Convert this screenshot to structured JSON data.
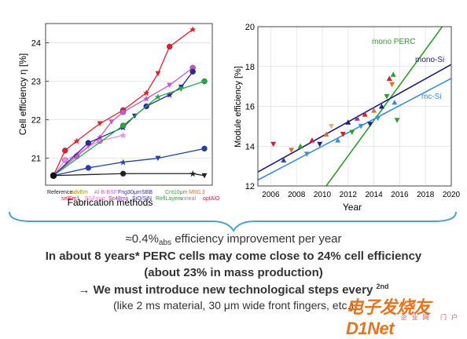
{
  "left_chart": {
    "ylabel": "Cell efficiency η [%]",
    "xlabel": "Fabrication methods",
    "yticks": [
      "21",
      "22",
      "23",
      "24"
    ],
    "top_labels": [
      {
        "text": "Reference",
        "color": "#222222"
      },
      {
        "text": "advEm",
        "color": "#b8860b"
      },
      {
        "text": "Al-B-BSF",
        "color": "#cc66cc"
      },
      {
        "text": "Fng30μm",
        "color": "#3333aa"
      },
      {
        "text": "SBB",
        "color": "#3333aa"
      },
      {
        "text": "Cnt10μm",
        "color": "#33aa33"
      },
      {
        "text": "MR0.3",
        "color": "#e07030"
      }
    ],
    "bottom_labels": [
      {
        "text": "selEm1",
        "color": "#cc2233"
      },
      {
        "text": "BSFeng",
        "color": "#ee88ee"
      },
      {
        "text": "Sc48ms",
        "color": "#992299"
      },
      {
        "text": "SiO/SiN",
        "color": "#3333aa"
      },
      {
        "text": "ReflLayers",
        "color": "#33aa33"
      },
      {
        "text": "anneal",
        "color": "#888888"
      },
      {
        "text": "optAlO",
        "color": "#cc2233"
      }
    ]
  },
  "right_chart": {
    "ylabel": "Module efficiency [%]",
    "xlabel": "Year",
    "series_labels": {
      "mono_perc": "mono PERC",
      "mono_si": "mono-Si",
      "mc_si": "mc-Si"
    }
  },
  "chart_data": [
    {
      "type": "scatter",
      "title": "",
      "xlabel": "Fabrication methods",
      "ylabel": "Cell efficiency η [%]",
      "ylim": [
        20.3,
        24.5
      ],
      "x_categories": [
        "Reference",
        "selEm1",
        "advEm",
        "BSFeng",
        "Al-B-BSF",
        "Sc48ms",
        "Fng30μm",
        "SiO/SiN",
        "SBB",
        "ReflLayers",
        "Cnt10μm",
        "anneal",
        "MR0.3",
        "optAlO"
      ],
      "series": [
        {
          "color": "#e0202e",
          "x": [
            0,
            1,
            2,
            4,
            6,
            8,
            9,
            10,
            12
          ],
          "y": [
            20.55,
            21.2,
            21.45,
            21.9,
            22.25,
            22.7,
            23.2,
            23.9,
            24.35
          ]
        },
        {
          "color": "#ee88ee",
          "x": [
            0,
            1,
            2,
            3,
            4,
            6
          ],
          "y": [
            20.55,
            20.95,
            21.1,
            21.3,
            21.45,
            21.6
          ]
        },
        {
          "color": "#cc55cc",
          "x": [
            0,
            2,
            4,
            5,
            6,
            8,
            10,
            12
          ],
          "y": [
            20.55,
            21.05,
            21.55,
            21.95,
            22.2,
            22.55,
            22.9,
            23.35
          ]
        },
        {
          "color": "#2a2a9a",
          "x": [
            0,
            3,
            6,
            7,
            8,
            10,
            11,
            12
          ],
          "y": [
            20.55,
            21.4,
            21.8,
            22.1,
            22.35,
            22.65,
            22.85,
            23.25
          ]
        },
        {
          "color": "#22aa44",
          "x": [
            0,
            6,
            9,
            11,
            13
          ],
          "y": [
            20.55,
            21.85,
            22.6,
            22.8,
            23.0
          ]
        },
        {
          "color": "#2244aa",
          "x": [
            0,
            3,
            6,
            9,
            13
          ],
          "y": [
            20.55,
            20.75,
            20.9,
            21.0,
            21.25
          ]
        },
        {
          "color": "#222222",
          "x": [
            0,
            6,
            12,
            13
          ],
          "y": [
            20.55,
            20.6,
            20.6,
            20.55
          ]
        }
      ]
    },
    {
      "type": "scatter",
      "title": "",
      "xlabel": "Year",
      "ylabel": "Module efficiency [%]",
      "xlim": [
        2005,
        2020
      ],
      "ylim": [
        12,
        20
      ],
      "xticks": [
        2006,
        2008,
        2010,
        2012,
        2014,
        2016,
        2018,
        2020
      ],
      "yticks": [
        12,
        14,
        16,
        18,
        20
      ],
      "trend_lines": [
        {
          "name": "mono PERC",
          "color": "#2e9e2e",
          "points": [
            [
              2010.3,
              12
            ],
            [
              2019.3,
              20
            ]
          ]
        },
        {
          "name": "mono-Si",
          "color": "#1f1f80",
          "points": [
            [
              2005,
              12.7
            ],
            [
              2020,
              18.1
            ]
          ]
        },
        {
          "name": "mc-Si",
          "color": "#3a8fd6",
          "points": [
            [
              2005,
              12.3
            ],
            [
              2020,
              17.4
            ]
          ]
        }
      ],
      "points": [
        {
          "x": 2006.2,
          "y": 14.1,
          "color": "#cc2233"
        },
        {
          "x": 2007.0,
          "y": 13.3,
          "color": "#3344aa"
        },
        {
          "x": 2007.6,
          "y": 13.8,
          "color": "#e07030"
        },
        {
          "x": 2008.3,
          "y": 14.0,
          "color": "#2e9e2e"
        },
        {
          "x": 2008.8,
          "y": 13.6,
          "color": "#5588cc"
        },
        {
          "x": 2009.2,
          "y": 14.3,
          "color": "#cc2233"
        },
        {
          "x": 2009.8,
          "y": 14.1,
          "color": "#1f1f80"
        },
        {
          "x": 2010.3,
          "y": 14.6,
          "color": "#e07030"
        },
        {
          "x": 2010.7,
          "y": 15.0,
          "color": "#e8b070"
        },
        {
          "x": 2011.2,
          "y": 14.3,
          "color": "#3a8fd6"
        },
        {
          "x": 2011.6,
          "y": 14.6,
          "color": "#cc2233"
        },
        {
          "x": 2012.0,
          "y": 15.2,
          "color": "#1f1f80"
        },
        {
          "x": 2012.3,
          "y": 14.7,
          "color": "#2e9e2e"
        },
        {
          "x": 2012.7,
          "y": 15.4,
          "color": "#aa3388"
        },
        {
          "x": 2013.0,
          "y": 15.0,
          "color": "#3a8fd6"
        },
        {
          "x": 2013.3,
          "y": 15.6,
          "color": "#cc2233"
        },
        {
          "x": 2013.7,
          "y": 15.1,
          "color": "#1f1f80"
        },
        {
          "x": 2014.0,
          "y": 15.8,
          "color": "#e07030"
        },
        {
          "x": 2014.3,
          "y": 15.4,
          "color": "#3a8fd6"
        },
        {
          "x": 2014.6,
          "y": 16.0,
          "color": "#1f1f80"
        },
        {
          "x": 2015.0,
          "y": 16.5,
          "color": "#2e9e2e"
        },
        {
          "x": 2015.2,
          "y": 17.4,
          "color": "#cc2233"
        },
        {
          "x": 2015.4,
          "y": 17.1,
          "color": "#e07030"
        },
        {
          "x": 2015.6,
          "y": 16.2,
          "color": "#3a8fd6"
        },
        {
          "x": 2015.8,
          "y": 15.3,
          "color": "#2e9e2e"
        },
        {
          "x": 2015.5,
          "y": 17.6,
          "color": "#2e9e2e"
        }
      ]
    }
  ],
  "caption": {
    "line1_prefix": "≈0.4%",
    "line1_sub": "abs",
    "line1_suffix": " efficiency improvement per year",
    "line2": "In about 8 years* PERC cells may come close to 24% cell efficiency",
    "line3": "(about 23% in mass production)",
    "line4": "→ We must introduce new technological steps every",
    "line4_sup": "2nd",
    "line5": "(like 2 ms material, 30 μm wide front fingers, etc.)"
  },
  "watermark": {
    "main": "电子发烧友 D1Net",
    "sub": "企业网 门户"
  },
  "colors": {
    "accent_orange": "#e8731e",
    "bracket": "#4aa0d8"
  }
}
